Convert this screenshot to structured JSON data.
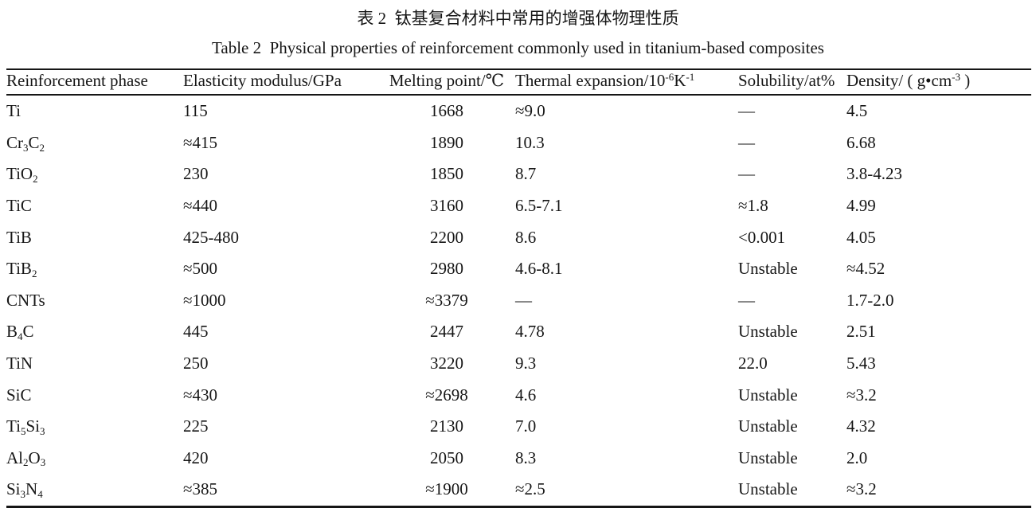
{
  "title_zh": "表 2  钛基复合材料中常用的增强体物理性质",
  "title_en": "Table 2  Physical properties of reinforcement commonly used in titanium-based composites",
  "text_color": "#161616",
  "background_color": "#ffffff",
  "table": {
    "columns": [
      {
        "label": "Reinforcement phase",
        "align": "left"
      },
      {
        "label": "Elasticity modulus/GPa",
        "align": "left"
      },
      {
        "label": "Melting point/℃",
        "align": "center"
      },
      {
        "label": "Thermal expansion/10^{-6}K^{-1}",
        "align": "left"
      },
      {
        "label": "Solubility/at%",
        "align": "left"
      },
      {
        "label": "Density/ ( g•cm^{-3} )",
        "align": "left"
      }
    ],
    "rows": [
      [
        "Ti",
        "115",
        "1668",
        "≈9.0",
        "—",
        "4.5"
      ],
      [
        "Cr_{3}C_{2}",
        "≈415",
        "1890",
        "10.3",
        "—",
        "6.68"
      ],
      [
        "TiO_{2}",
        "230",
        "1850",
        "8.7",
        "—",
        "3.8-4.23"
      ],
      [
        "TiC",
        "≈440",
        "3160",
        "6.5-7.1",
        "≈1.8",
        "4.99"
      ],
      [
        "TiB",
        "425-480",
        "2200",
        "8.6",
        "<0.001",
        "4.05"
      ],
      [
        "TiB_{2}",
        "≈500",
        "2980",
        "4.6-8.1",
        "Unstable",
        "≈4.52"
      ],
      [
        "CNTs",
        "≈1000",
        "≈3379",
        "—",
        "—",
        "1.7-2.0"
      ],
      [
        "B_{4}C",
        "445",
        "2447",
        "4.78",
        "Unstable",
        "2.51"
      ],
      [
        "TiN",
        "250",
        "3220",
        "9.3",
        "22.0",
        "5.43"
      ],
      [
        "SiC",
        "≈430",
        "≈2698",
        "4.6",
        "Unstable",
        "≈3.2"
      ],
      [
        "Ti_{5}Si_{3}",
        "225",
        "2130",
        "7.0",
        "Unstable",
        "4.32"
      ],
      [
        "Al_{2}O_{3}",
        "420",
        "2050",
        "8.3",
        "Unstable",
        "2.0"
      ],
      [
        "Si_{3}N_{4}",
        "≈385",
        "≈1900",
        "≈2.5",
        "Unstable",
        "≈3.2"
      ]
    ]
  }
}
